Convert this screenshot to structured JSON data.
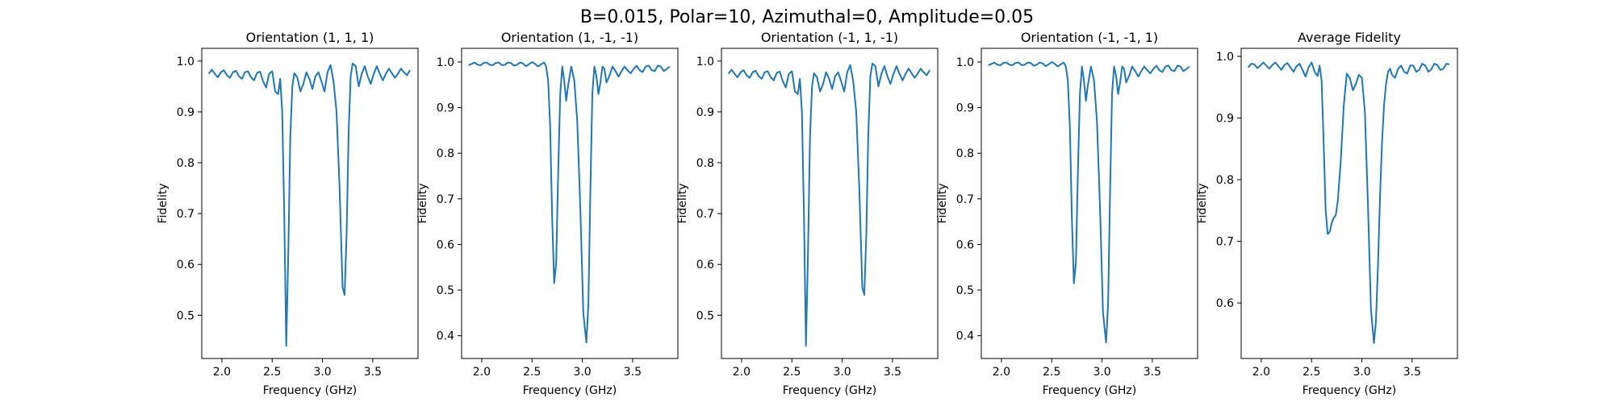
{
  "figure": {
    "suptitle": "B=0.015, Polar=10, Azimuthal=0, Amplitude=0.05",
    "line_color": "#1f77b4"
  },
  "chart_data": [
    {
      "type": "line",
      "title": "Orientation (1, 1, 1)",
      "xlabel": "Frequency (GHz)",
      "ylabel": "Fidelity",
      "xlim": [
        1.8,
        3.95
      ],
      "ylim": [
        0.415,
        1.025
      ],
      "xticks": [
        2.0,
        2.5,
        3.0,
        3.5
      ],
      "yticks": [
        0.5,
        0.6,
        0.7,
        0.8,
        0.9,
        1.0
      ],
      "grid": false,
      "series": [
        {
          "x": [
            1.87,
            1.9,
            1.93,
            1.96,
            1.99,
            2.02,
            2.05,
            2.08,
            2.11,
            2.14,
            2.17,
            2.2,
            2.23,
            2.26,
            2.29,
            2.32,
            2.35,
            2.38,
            2.41,
            2.44,
            2.47,
            2.5,
            2.53,
            2.56,
            2.58,
            2.6,
            2.62,
            2.64,
            2.66,
            2.68,
            2.7,
            2.72,
            2.75,
            2.78,
            2.81,
            2.84,
            2.87,
            2.9,
            2.93,
            2.96,
            2.99,
            3.02,
            3.05,
            3.08,
            3.11,
            3.14,
            3.17,
            3.2,
            3.22,
            3.24,
            3.26,
            3.28,
            3.3,
            3.33,
            3.36,
            3.39,
            3.42,
            3.45,
            3.48,
            3.51,
            3.54,
            3.57,
            3.6,
            3.63,
            3.66,
            3.69,
            3.72,
            3.75,
            3.78,
            3.81,
            3.84,
            3.87
          ],
          "y": [
            0.975,
            0.983,
            0.975,
            0.968,
            0.978,
            0.982,
            0.972,
            0.967,
            0.978,
            0.981,
            0.97,
            0.965,
            0.978,
            0.98,
            0.968,
            0.962,
            0.977,
            0.979,
            0.96,
            0.948,
            0.975,
            0.98,
            0.94,
            0.935,
            0.965,
            0.9,
            0.7,
            0.44,
            0.62,
            0.85,
            0.95,
            0.976,
            0.968,
            0.94,
            0.955,
            0.978,
            0.965,
            0.945,
            0.97,
            0.978,
            0.96,
            0.94,
            0.978,
            0.992,
            0.96,
            0.9,
            0.75,
            0.555,
            0.54,
            0.66,
            0.86,
            0.97,
            0.995,
            0.99,
            0.95,
            0.975,
            0.99,
            0.97,
            0.955,
            0.975,
            0.99,
            0.975,
            0.962,
            0.975,
            0.985,
            0.976,
            0.967,
            0.975,
            0.985,
            0.978,
            0.972,
            0.982
          ]
        }
      ]
    },
    {
      "type": "line",
      "title": "Orientation (1, -1, -1)",
      "xlabel": "Frequency (GHz)",
      "ylabel": "Fidelity",
      "xlim": [
        1.8,
        3.95
      ],
      "ylim": [
        0.35,
        1.03
      ],
      "xticks": [
        2.0,
        2.5,
        3.0,
        3.5
      ],
      "yticks": [
        0.4,
        0.5,
        0.6,
        0.7,
        0.8,
        0.9,
        1.0
      ],
      "grid": false,
      "series": [
        {
          "x": [
            1.87,
            1.9,
            1.93,
            1.96,
            1.99,
            2.02,
            2.05,
            2.08,
            2.11,
            2.14,
            2.17,
            2.2,
            2.23,
            2.26,
            2.29,
            2.32,
            2.35,
            2.38,
            2.41,
            2.44,
            2.47,
            2.5,
            2.53,
            2.56,
            2.59,
            2.62,
            2.64,
            2.66,
            2.68,
            2.7,
            2.72,
            2.74,
            2.76,
            2.78,
            2.8,
            2.82,
            2.84,
            2.86,
            2.89,
            2.92,
            2.95,
            2.98,
            3.01,
            3.04,
            3.06,
            3.08,
            3.1,
            3.12,
            3.14,
            3.16,
            3.18,
            3.2,
            3.22,
            3.24,
            3.27,
            3.3,
            3.33,
            3.36,
            3.39,
            3.42,
            3.45,
            3.48,
            3.51,
            3.54,
            3.57,
            3.6,
            3.63,
            3.66,
            3.69,
            3.72,
            3.75,
            3.78,
            3.81,
            3.84,
            3.87
          ],
          "y": [
            0.993,
            0.996,
            0.999,
            0.994,
            0.993,
            0.998,
            0.999,
            0.994,
            0.993,
            0.998,
            0.999,
            0.993,
            0.994,
            0.999,
            0.998,
            0.992,
            0.994,
            0.999,
            0.997,
            0.991,
            0.995,
            1.0,
            0.996,
            0.99,
            0.995,
            0.999,
            0.99,
            0.96,
            0.86,
            0.66,
            0.515,
            0.56,
            0.76,
            0.93,
            0.99,
            0.96,
            0.915,
            0.95,
            0.99,
            0.96,
            0.87,
            0.68,
            0.45,
            0.385,
            0.47,
            0.72,
            0.93,
            0.99,
            0.97,
            0.93,
            0.955,
            0.99,
            0.985,
            0.955,
            0.97,
            0.99,
            0.98,
            0.968,
            0.98,
            0.99,
            0.982,
            0.975,
            0.985,
            0.992,
            0.982,
            0.978,
            0.99,
            0.992,
            0.982,
            0.98,
            0.992,
            0.99,
            0.98,
            0.985,
            0.99
          ]
        }
      ]
    },
    {
      "type": "line",
      "title": "Orientation (-1, 1, -1)",
      "xlabel": "Frequency (GHz)",
      "ylabel": "Fidelity",
      "xlim": [
        1.8,
        3.95
      ],
      "ylim": [
        0.415,
        1.025
      ],
      "xticks": [
        2.0,
        2.5,
        3.0,
        3.5
      ],
      "yticks": [
        0.5,
        0.6,
        0.7,
        0.8,
        0.9,
        1.0
      ],
      "grid": false,
      "series": [
        {
          "x": [
            1.87,
            1.9,
            1.93,
            1.96,
            1.99,
            2.02,
            2.05,
            2.08,
            2.11,
            2.14,
            2.17,
            2.2,
            2.23,
            2.26,
            2.29,
            2.32,
            2.35,
            2.38,
            2.41,
            2.44,
            2.47,
            2.5,
            2.53,
            2.56,
            2.58,
            2.6,
            2.62,
            2.64,
            2.66,
            2.68,
            2.7,
            2.72,
            2.75,
            2.78,
            2.81,
            2.84,
            2.87,
            2.9,
            2.93,
            2.96,
            2.99,
            3.02,
            3.05,
            3.08,
            3.11,
            3.14,
            3.17,
            3.2,
            3.22,
            3.24,
            3.26,
            3.28,
            3.3,
            3.33,
            3.36,
            3.39,
            3.42,
            3.45,
            3.48,
            3.51,
            3.54,
            3.57,
            3.6,
            3.63,
            3.66,
            3.69,
            3.72,
            3.75,
            3.78,
            3.81,
            3.84,
            3.87
          ],
          "y": [
            0.975,
            0.983,
            0.975,
            0.968,
            0.978,
            0.982,
            0.972,
            0.967,
            0.978,
            0.981,
            0.97,
            0.965,
            0.978,
            0.98,
            0.968,
            0.962,
            0.977,
            0.979,
            0.96,
            0.948,
            0.975,
            0.98,
            0.94,
            0.935,
            0.965,
            0.9,
            0.7,
            0.44,
            0.62,
            0.85,
            0.95,
            0.976,
            0.968,
            0.94,
            0.955,
            0.978,
            0.965,
            0.945,
            0.97,
            0.978,
            0.96,
            0.94,
            0.978,
            0.992,
            0.96,
            0.9,
            0.75,
            0.555,
            0.54,
            0.66,
            0.86,
            0.97,
            0.995,
            0.99,
            0.95,
            0.975,
            0.99,
            0.97,
            0.955,
            0.975,
            0.99,
            0.975,
            0.962,
            0.975,
            0.985,
            0.976,
            0.967,
            0.975,
            0.985,
            0.978,
            0.972,
            0.982
          ]
        }
      ]
    },
    {
      "type": "line",
      "title": "Orientation (-1, -1, 1)",
      "xlabel": "Frequency (GHz)",
      "ylabel": "Fidelity",
      "xlim": [
        1.8,
        3.95
      ],
      "ylim": [
        0.35,
        1.03
      ],
      "xticks": [
        2.0,
        2.5,
        3.0,
        3.5
      ],
      "yticks": [
        0.4,
        0.5,
        0.6,
        0.7,
        0.8,
        0.9,
        1.0
      ],
      "grid": false,
      "series": [
        {
          "x": [
            1.87,
            1.9,
            1.93,
            1.96,
            1.99,
            2.02,
            2.05,
            2.08,
            2.11,
            2.14,
            2.17,
            2.2,
            2.23,
            2.26,
            2.29,
            2.32,
            2.35,
            2.38,
            2.41,
            2.44,
            2.47,
            2.5,
            2.53,
            2.56,
            2.59,
            2.62,
            2.64,
            2.66,
            2.68,
            2.7,
            2.72,
            2.74,
            2.76,
            2.78,
            2.8,
            2.82,
            2.84,
            2.86,
            2.89,
            2.92,
            2.95,
            2.98,
            3.01,
            3.04,
            3.06,
            3.08,
            3.1,
            3.12,
            3.14,
            3.16,
            3.18,
            3.2,
            3.22,
            3.24,
            3.27,
            3.3,
            3.33,
            3.36,
            3.39,
            3.42,
            3.45,
            3.48,
            3.51,
            3.54,
            3.57,
            3.6,
            3.63,
            3.66,
            3.69,
            3.72,
            3.75,
            3.78,
            3.81,
            3.84,
            3.87
          ],
          "y": [
            0.993,
            0.996,
            0.999,
            0.994,
            0.993,
            0.998,
            0.999,
            0.994,
            0.993,
            0.998,
            0.999,
            0.993,
            0.994,
            0.999,
            0.998,
            0.992,
            0.994,
            0.999,
            0.997,
            0.991,
            0.995,
            1.0,
            0.996,
            0.99,
            0.995,
            0.999,
            0.99,
            0.96,
            0.86,
            0.66,
            0.515,
            0.56,
            0.76,
            0.93,
            0.99,
            0.96,
            0.915,
            0.95,
            0.99,
            0.96,
            0.87,
            0.68,
            0.45,
            0.385,
            0.47,
            0.72,
            0.93,
            0.99,
            0.97,
            0.93,
            0.955,
            0.99,
            0.985,
            0.955,
            0.97,
            0.99,
            0.98,
            0.968,
            0.98,
            0.99,
            0.982,
            0.975,
            0.985,
            0.992,
            0.982,
            0.978,
            0.99,
            0.992,
            0.982,
            0.98,
            0.992,
            0.99,
            0.98,
            0.985,
            0.99
          ]
        }
      ]
    },
    {
      "type": "line",
      "title": "Average Fidelity",
      "xlabel": "Frequency (GHz)",
      "ylabel": "Fidelity",
      "xlim": [
        1.8,
        3.95
      ],
      "ylim": [
        0.51,
        1.013
      ],
      "xticks": [
        2.0,
        2.5,
        3.0,
        3.5
      ],
      "yticks": [
        0.6,
        0.7,
        0.8,
        0.9,
        1.0
      ],
      "grid": false,
      "series": [
        {
          "x": [
            1.87,
            1.9,
            1.93,
            1.96,
            1.99,
            2.02,
            2.05,
            2.08,
            2.11,
            2.14,
            2.17,
            2.2,
            2.23,
            2.26,
            2.29,
            2.32,
            2.35,
            2.38,
            2.41,
            2.44,
            2.47,
            2.5,
            2.53,
            2.56,
            2.58,
            2.6,
            2.62,
            2.64,
            2.66,
            2.68,
            2.7,
            2.72,
            2.74,
            2.76,
            2.79,
            2.82,
            2.85,
            2.88,
            2.91,
            2.94,
            2.97,
            3.0,
            3.03,
            3.06,
            3.09,
            3.12,
            3.14,
            3.16,
            3.18,
            3.2,
            3.22,
            3.24,
            3.26,
            3.28,
            3.3,
            3.33,
            3.36,
            3.39,
            3.42,
            3.45,
            3.48,
            3.51,
            3.54,
            3.57,
            3.6,
            3.63,
            3.66,
            3.69,
            3.72,
            3.75,
            3.78,
            3.81,
            3.84,
            3.87
          ],
          "y": [
            0.982,
            0.988,
            0.987,
            0.981,
            0.985,
            0.99,
            0.985,
            0.98,
            0.986,
            0.99,
            0.984,
            0.978,
            0.986,
            0.989,
            0.982,
            0.975,
            0.984,
            0.988,
            0.978,
            0.967,
            0.982,
            0.99,
            0.975,
            0.968,
            0.985,
            0.96,
            0.86,
            0.75,
            0.712,
            0.715,
            0.73,
            0.738,
            0.742,
            0.765,
            0.83,
            0.92,
            0.972,
            0.965,
            0.945,
            0.955,
            0.97,
            0.965,
            0.91,
            0.76,
            0.59,
            0.535,
            0.57,
            0.66,
            0.77,
            0.86,
            0.92,
            0.955,
            0.975,
            0.98,
            0.97,
            0.965,
            0.98,
            0.985,
            0.975,
            0.972,
            0.985,
            0.985,
            0.975,
            0.978,
            0.988,
            0.985,
            0.975,
            0.979,
            0.988,
            0.986,
            0.978,
            0.98,
            0.988,
            0.987
          ]
        }
      ]
    }
  ]
}
